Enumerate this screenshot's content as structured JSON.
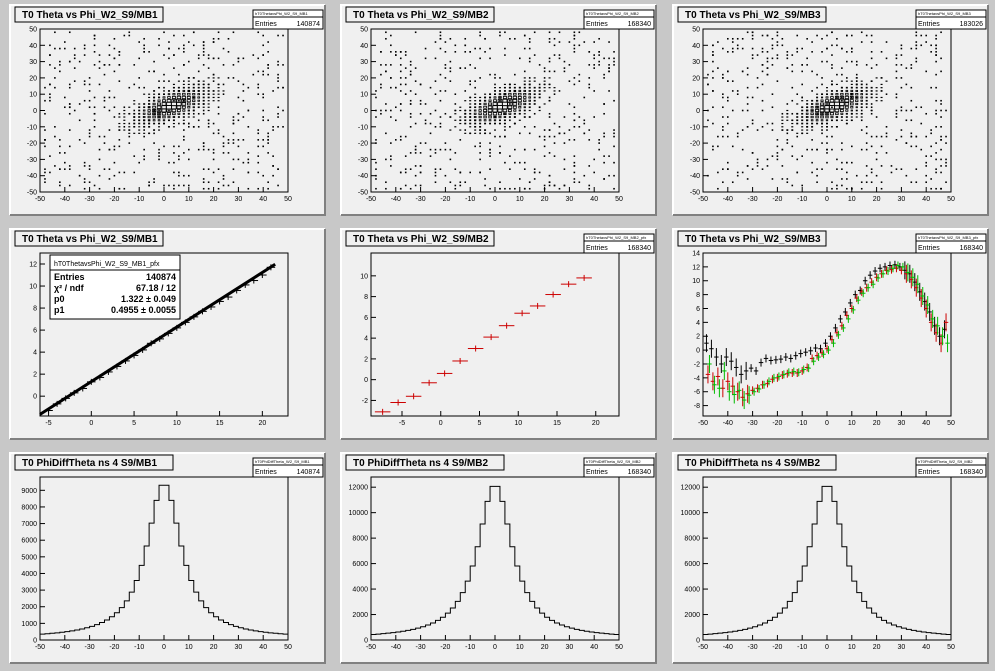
{
  "chart_data": [
    {
      "type": "scatter",
      "title": "T0 Theta vs Phi_W2_S9/MB1",
      "stats_name": "hT0ThetavsPhi_W2_S9_MB1",
      "entries_label": "Entries",
      "entries": "140874",
      "xlim": [
        -50,
        50
      ],
      "ylim": [
        -50,
        50
      ],
      "xticks": [
        -50,
        -40,
        -30,
        -20,
        -10,
        0,
        10,
        20,
        30,
        40,
        50
      ],
      "yticks": [
        -50,
        -40,
        -30,
        -20,
        -10,
        0,
        10,
        20,
        30,
        40,
        50
      ],
      "center": [
        3,
        3
      ],
      "spread": [
        14,
        9
      ],
      "slope": 0.5
    },
    {
      "type": "scatter",
      "title": "T0 Theta vs Phi_W2_S9/MB2",
      "stats_name": "hT0ThetavsPhi_W2_S9_MB2",
      "entries_label": "Entries",
      "entries": "168340",
      "xlim": [
        -50,
        50
      ],
      "ylim": [
        -50,
        50
      ],
      "xticks": [
        -50,
        -40,
        -30,
        -20,
        -10,
        0,
        10,
        20,
        30,
        40,
        50
      ],
      "yticks": [
        -50,
        -40,
        -30,
        -20,
        -10,
        0,
        10,
        20,
        30,
        40,
        50
      ],
      "center": [
        3,
        3
      ],
      "spread": [
        14,
        9
      ],
      "slope": 0.5
    },
    {
      "type": "scatter",
      "title": "T0 Theta vs Phi_W2_S9/MB3",
      "stats_name": "hT0ThetavsPhi_W2_S9_MB3",
      "entries_label": "Entries",
      "entries": "183026",
      "xlim": [
        -50,
        50
      ],
      "ylim": [
        -50,
        50
      ],
      "xticks": [
        -50,
        -40,
        -30,
        -20,
        -10,
        0,
        10,
        20,
        30,
        40,
        50
      ],
      "yticks": [
        -50,
        -40,
        -30,
        -20,
        -10,
        0,
        10,
        20,
        30,
        40,
        50
      ],
      "center": [
        3,
        3
      ],
      "spread": [
        14,
        9
      ],
      "slope": 0.5
    },
    {
      "type": "line",
      "title": "T0 Theta vs Phi_W2_S9/MB1",
      "stats_name": "hT0ThetavsPhi_W2_S9_MB1_pfx",
      "fit": {
        "rows": [
          {
            "label": "Entries",
            "value": "140874"
          },
          {
            "label": "χ² / ndf",
            "value": "67.18 / 12"
          },
          {
            "label": "p0",
            "value": "1.322 ± 0.049"
          },
          {
            "label": "p1",
            "value": "0.4955 ± 0.0055"
          }
        ],
        "p0": 1.322,
        "p1": 0.4955
      },
      "xlim": [
        -6,
        23
      ],
      "ylim": [
        -1.8,
        13
      ],
      "xticks": [
        -5,
        0,
        5,
        10,
        15,
        20
      ],
      "yticks": [
        0,
        2,
        4,
        6,
        8,
        10,
        12
      ],
      "series": [
        {
          "color": "#000000",
          "x": [
            -5,
            -4,
            -3,
            -2,
            -1,
            0,
            1,
            2,
            3,
            4,
            5,
            6,
            7,
            8,
            9,
            10,
            11,
            12,
            13,
            14,
            15,
            16,
            17,
            18,
            19,
            20,
            21
          ],
          "y": [
            -1.3,
            -0.7,
            -0.2,
            0.3,
            0.7,
            1.3,
            1.7,
            2.2,
            2.7,
            3.2,
            3.7,
            4.2,
            4.8,
            5.2,
            5.7,
            6.2,
            6.7,
            7.2,
            7.7,
            8.1,
            8.6,
            9.0,
            9.6,
            10.1,
            10.5,
            11.0,
            11.7
          ]
        }
      ]
    },
    {
      "type": "line",
      "title": "T0 Theta vs Phi_W2_S9/MB2",
      "stats_name": "hT0ThetavsPhi_W2_S9_MB2_pfx",
      "entries_label": "Entries",
      "entries": "168340",
      "xlim": [
        -9,
        23
      ],
      "ylim": [
        -3.5,
        12.2
      ],
      "xticks": [
        -5,
        0,
        5,
        10,
        15,
        20
      ],
      "yticks": [
        -2,
        0,
        2,
        4,
        6,
        8,
        10
      ],
      "series": [
        {
          "color": "#cc0000",
          "x": [
            -7.5,
            -5.5,
            -3.5,
            -1.5,
            0.5,
            2.5,
            4.5,
            6.5,
            8.5,
            10.5,
            12.5,
            14.5,
            16.5,
            18.5
          ],
          "y": [
            -3.1,
            -2.2,
            -1.6,
            -0.3,
            0.6,
            1.8,
            3.0,
            4.1,
            5.2,
            6.4,
            7.1,
            8.2,
            9.2,
            9.8
          ]
        }
      ]
    },
    {
      "type": "line",
      "title": "T0 Theta vs Phi_W2_S9/MB3",
      "stats_name": "hT0ThetavsPhi_W2_S9_MB3_pfx",
      "entries_label": "Entries",
      "entries": "168340",
      "xlim": [
        -50,
        50
      ],
      "ylim": [
        -9.5,
        14
      ],
      "xticks": [
        -50,
        -40,
        -30,
        -20,
        -10,
        0,
        10,
        20,
        30,
        40,
        50
      ],
      "yticks": [
        -8,
        -6,
        -4,
        -2,
        0,
        2,
        4,
        6,
        8,
        10,
        12,
        14
      ],
      "series": [
        {
          "color": "#000000",
          "x": [
            -48,
            -46,
            -44,
            -42,
            -40,
            -38,
            -36,
            -34,
            -32,
            -30,
            -28,
            -26,
            -24,
            -22,
            -20,
            -18,
            -16,
            -14,
            -12,
            -10,
            -8,
            -6,
            -4,
            -2,
            0,
            2,
            4,
            6,
            8,
            10,
            12,
            14,
            16,
            18,
            20,
            22,
            24,
            26,
            28,
            30,
            32,
            34,
            36,
            38,
            40,
            42,
            44,
            46,
            48
          ],
          "y": [
            1.0,
            0.2,
            -1.0,
            -2.0,
            -1.0,
            -1.6,
            -2.5,
            -3.5,
            -3.0,
            -2.6,
            -3.0,
            -1.8,
            -1.2,
            -1.5,
            -1.4,
            -1.3,
            -1.0,
            -1.2,
            -0.8,
            -0.5,
            -0.3,
            -0.1,
            0.3,
            0.2,
            1.0,
            2.0,
            3.2,
            4.5,
            5.5,
            6.8,
            8.0,
            8.6,
            10.0,
            10.8,
            11.4,
            11.8,
            12.0,
            12.2,
            12.3,
            12.0,
            11.5,
            11.0,
            9.8,
            8.4,
            7.0,
            5.5,
            3.5,
            2.0,
            3.0
          ]
        },
        {
          "color": "#cc0000",
          "x": [
            -48,
            -46,
            -44,
            -42,
            -40,
            -38,
            -36,
            -34,
            -32,
            -30,
            -28,
            -26,
            -24,
            -22,
            -20,
            -18,
            -16,
            -14,
            -12,
            -10,
            -8,
            -6,
            -4,
            -2,
            0,
            2,
            4,
            6,
            8,
            10,
            12,
            14,
            16,
            18,
            20,
            22,
            24,
            26,
            28,
            30,
            32,
            34,
            36,
            38,
            40,
            42,
            44,
            46,
            48
          ],
          "y": [
            -3.5,
            -4.5,
            -3.8,
            -5.5,
            -4.5,
            -5.2,
            -6.0,
            -6.8,
            -6.3,
            -5.8,
            -5.5,
            -5.0,
            -4.8,
            -4.2,
            -4.0,
            -3.6,
            -3.4,
            -3.3,
            -3.3,
            -3.0,
            -2.5,
            -1.2,
            -0.8,
            -0.4,
            0.2,
            1.5,
            2.5,
            3.5,
            5.0,
            6.0,
            7.5,
            8.4,
            9.0,
            9.8,
            10.5,
            11.0,
            11.5,
            11.6,
            11.8,
            11.5,
            11.0,
            10.2,
            9.0,
            7.5,
            6.0,
            4.0,
            2.5,
            1.0,
            4.0
          ]
        },
        {
          "color": "#00bb00",
          "x": [
            -48,
            -46,
            -44,
            -42,
            -40,
            -38,
            -36,
            -34,
            -32,
            -30,
            -28,
            -26,
            -24,
            -22,
            -20,
            -18,
            -16,
            -14,
            -12,
            -10,
            -8,
            -6,
            -4,
            -2,
            0,
            2,
            4,
            6,
            8,
            10,
            12,
            14,
            16,
            18,
            20,
            22,
            24,
            26,
            28,
            30,
            32,
            34,
            36,
            38,
            40,
            42,
            44,
            46,
            48
          ],
          "y": [
            -2.0,
            -5.0,
            -5.5,
            -3.0,
            -6.0,
            -6.4,
            -5.8,
            -7.2,
            -6.5,
            -6.0,
            -5.6,
            -5.0,
            -4.5,
            -4.0,
            -3.8,
            -3.5,
            -3.2,
            -3.1,
            -3.2,
            -2.8,
            -2.6,
            -1.6,
            -1.0,
            -0.6,
            0.0,
            1.0,
            2.2,
            3.2,
            4.5,
            5.8,
            7.2,
            8.2,
            9.0,
            9.5,
            10.4,
            11.0,
            11.4,
            11.8,
            12.2,
            12.0,
            11.2,
            10.5,
            9.5,
            7.8,
            6.5,
            4.5,
            3.5,
            2.0,
            1.0
          ]
        }
      ]
    },
    {
      "type": "bar",
      "title": "T0 PhiDiffTheta ns 4 S9/MB1",
      "stats_name": "hT0PhiDiffTheta_W2_S9_MB1",
      "entries_label": "Entries",
      "entries": "140874",
      "xlim": [
        -50,
        50
      ],
      "ylim": [
        0,
        9800
      ],
      "xticks": [
        -50,
        -40,
        -30,
        -20,
        -10,
        0,
        10,
        20,
        30,
        40,
        50
      ],
      "yticks": [
        0,
        1000,
        2000,
        3000,
        4000,
        5000,
        6000,
        7000,
        8000,
        9000
      ],
      "peak": 9350,
      "mean": 0,
      "gamma": 8.5
    },
    {
      "type": "bar",
      "title": "T0 PhiDiffTheta ns 4 S9/MB2",
      "stats_name": "hT0PhiDiffTheta_W2_S9_MB2",
      "entries_label": "Entries",
      "entries": "168340",
      "xlim": [
        -50,
        50
      ],
      "ylim": [
        0,
        12800
      ],
      "xticks": [
        -50,
        -40,
        -30,
        -20,
        -10,
        0,
        10,
        20,
        30,
        40,
        50
      ],
      "yticks": [
        0,
        2000,
        4000,
        6000,
        8000,
        10000,
        12000
      ],
      "peak": 12150,
      "mean": 0,
      "gamma": 8.5
    },
    {
      "type": "bar",
      "title": "T0 PhiDiffTheta ns 4 S9/MB2",
      "stats_name": "hT0PhiDiffTheta_W2_S9_MB2",
      "entries_label": "Entries",
      "entries": "168340",
      "xlim": [
        -50,
        50
      ],
      "ylim": [
        0,
        12800
      ],
      "xticks": [
        -50,
        -40,
        -30,
        -20,
        -10,
        0,
        10,
        20,
        30,
        40,
        50
      ],
      "yticks": [
        0,
        2000,
        4000,
        6000,
        8000,
        10000,
        12000
      ],
      "peak": 12150,
      "mean": 0,
      "gamma": 8.5
    }
  ]
}
